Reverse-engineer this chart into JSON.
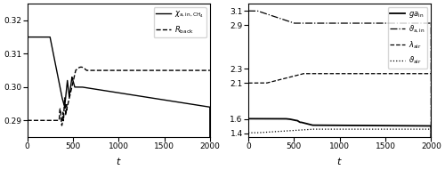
{
  "left_ylim": [
    0.285,
    0.325
  ],
  "left_yticks": [
    0.29,
    0.3,
    0.31,
    0.32
  ],
  "right_ylim": [
    1.35,
    3.2
  ],
  "right_yticks": [
    1.4,
    1.6,
    2.1,
    2.3,
    2.9,
    3.1
  ],
  "xlim": [
    0,
    2000
  ],
  "xticks": [
    0,
    500,
    1000,
    1500,
    2000
  ],
  "figsize": [
    5.0,
    1.91
  ],
  "dpi": 100
}
